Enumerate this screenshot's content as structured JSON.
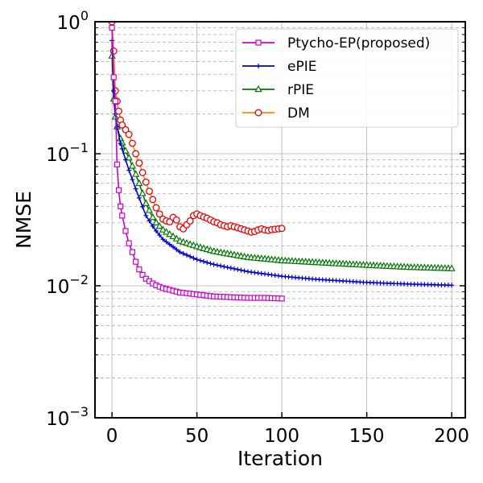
{
  "chart_data": {
    "type": "line",
    "xlabel": "Iteration",
    "ylabel": "NMSE",
    "xlim": [
      -10,
      208
    ],
    "ylim": [
      0.001,
      1
    ],
    "yscale": "log",
    "xticks": [
      0,
      50,
      100,
      150,
      200
    ],
    "yticks": [
      {
        "value": 0.001,
        "base": "10",
        "exp": "−3"
      },
      {
        "value": 0.01,
        "base": "10",
        "exp": "−2"
      },
      {
        "value": 0.1,
        "base": "10",
        "exp": "−1"
      },
      {
        "value": 1,
        "base": "10",
        "exp": "0"
      }
    ],
    "grid": {
      "major": true,
      "minor_y": true
    },
    "legend_position": "top-right",
    "series": [
      {
        "name": "Ptycho-EP(proposed)",
        "color": "#cc00cc",
        "marker": "square",
        "x": [
          0,
          1,
          2,
          3,
          4,
          5,
          6,
          7,
          8,
          9,
          10,
          12,
          14,
          16,
          18,
          20,
          25,
          30,
          40,
          50,
          60,
          70,
          80,
          90,
          100
        ],
        "y": [
          0.9,
          0.38,
          0.25,
          0.083,
          0.053,
          0.04,
          0.034,
          0.03,
          0.026,
          0.023,
          0.021,
          0.018,
          0.0152,
          0.0133,
          0.0121,
          0.0113,
          0.0102,
          0.0096,
          0.0089,
          0.0086,
          0.0083,
          0.0082,
          0.0081,
          0.0081,
          0.008
        ]
      },
      {
        "name": "ePIE",
        "color": "#0000cc",
        "marker": "plus",
        "x": [
          0,
          1,
          2,
          3,
          5,
          8,
          10,
          15,
          20,
          25,
          30,
          40,
          50,
          60,
          80,
          100,
          120,
          150,
          175,
          200
        ],
        "y": [
          0.72,
          0.3,
          0.2,
          0.16,
          0.12,
          0.09,
          0.075,
          0.05,
          0.034,
          0.027,
          0.0225,
          0.018,
          0.0158,
          0.0145,
          0.0128,
          0.0118,
          0.0112,
          0.0106,
          0.0103,
          0.0101
        ]
      },
      {
        "name": "rPIE",
        "color": "#007700",
        "marker": "triangle",
        "x": [
          0,
          1,
          2,
          3,
          5,
          8,
          10,
          15,
          20,
          25,
          30,
          40,
          50,
          60,
          80,
          100,
          120,
          150,
          175,
          200
        ],
        "y": [
          0.55,
          0.26,
          0.19,
          0.16,
          0.13,
          0.105,
          0.093,
          0.065,
          0.042,
          0.031,
          0.0265,
          0.0218,
          0.0198,
          0.0182,
          0.0164,
          0.0155,
          0.015,
          0.0143,
          0.0138,
          0.0135
        ]
      },
      {
        "name": "DM",
        "color": "#ff8c00",
        "marker": "circle",
        "marker_edge": "#ee0000",
        "x": [
          0,
          1,
          2,
          3,
          4,
          5,
          6,
          8,
          10,
          12,
          14,
          16,
          18,
          20,
          22,
          24,
          26,
          28,
          30,
          32,
          34,
          36,
          38,
          40,
          42,
          44,
          46,
          48,
          50,
          52,
          54,
          56,
          58,
          60,
          62,
          64,
          66,
          68,
          70,
          72,
          74,
          76,
          78,
          80,
          82,
          84,
          86,
          88,
          90,
          92,
          94,
          96,
          98,
          100
        ],
        "y": [
          1.0,
          0.6,
          0.3,
          0.25,
          0.21,
          0.18,
          0.165,
          0.152,
          0.14,
          0.12,
          0.1,
          0.085,
          0.072,
          0.061,
          0.052,
          0.045,
          0.039,
          0.035,
          0.032,
          0.031,
          0.0305,
          0.033,
          0.0315,
          0.028,
          0.027,
          0.029,
          0.031,
          0.034,
          0.035,
          0.034,
          0.0332,
          0.0325,
          0.0315,
          0.0305,
          0.03,
          0.029,
          0.0285,
          0.028,
          0.0285,
          0.028,
          0.0275,
          0.027,
          0.0265,
          0.026,
          0.0255,
          0.0258,
          0.0265,
          0.027,
          0.0265,
          0.0262,
          0.0266,
          0.0268,
          0.027,
          0.0272
        ]
      }
    ]
  }
}
